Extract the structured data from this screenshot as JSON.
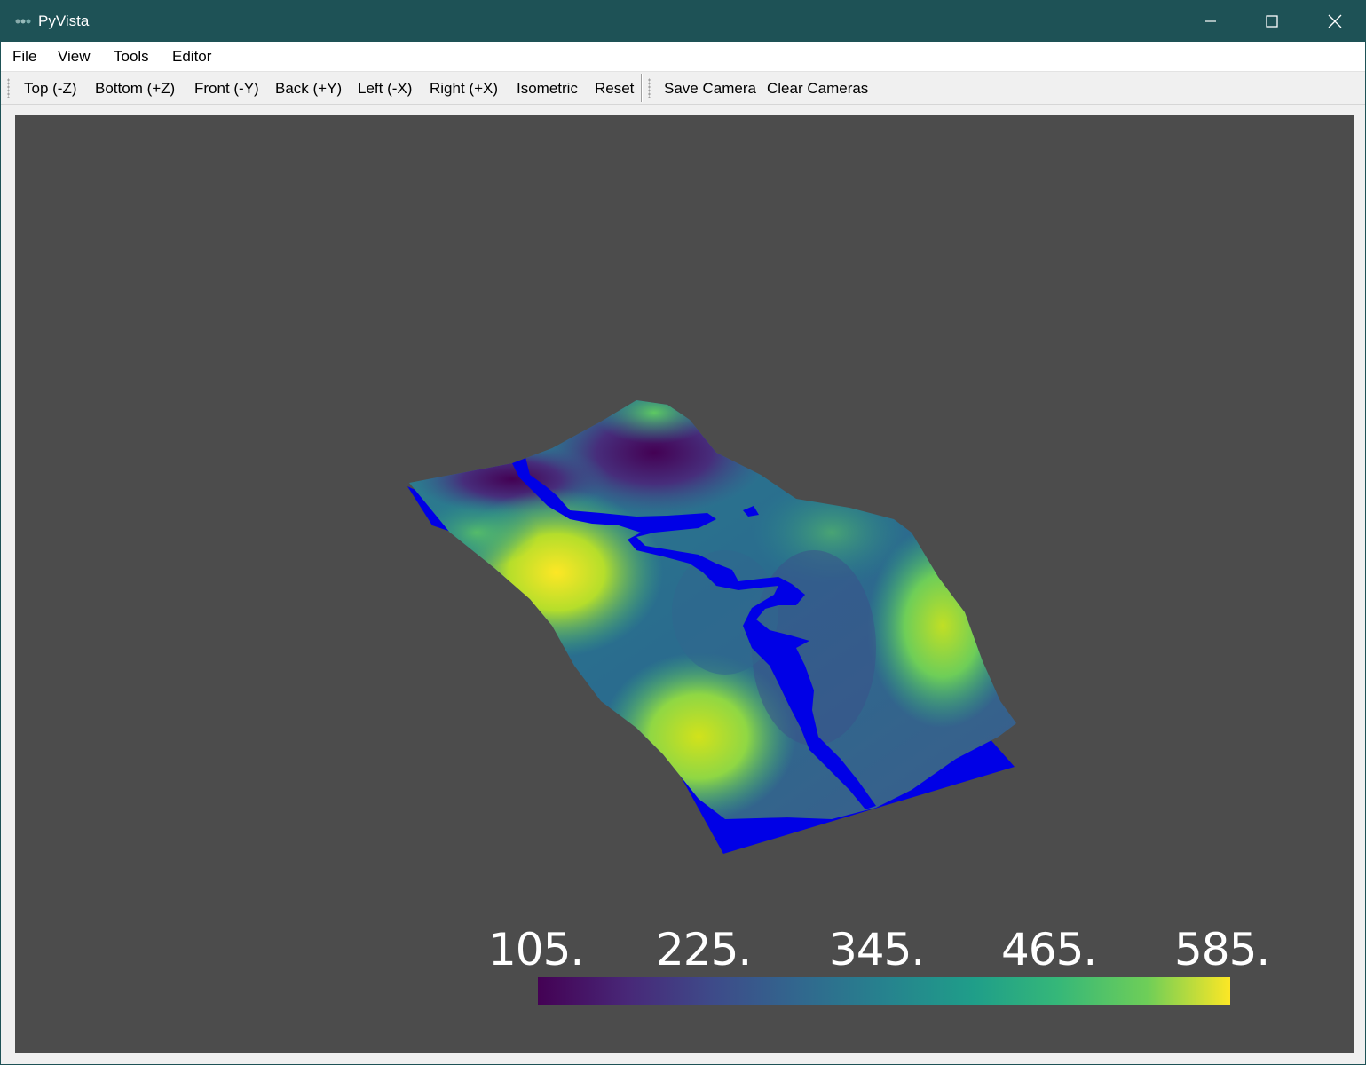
{
  "window": {
    "title": "PyVista"
  },
  "menu": [
    "File",
    "View",
    "Tools",
    "Editor"
  ],
  "toolbar": {
    "views": [
      "Top (-Z)",
      "Bottom (+Z)",
      "Front (-Y)",
      "Back (+Y)",
      "Left (-X)",
      "Right (+X)",
      "Isometric",
      "Reset"
    ],
    "camera": [
      "Save Camera",
      "Clear Cameras"
    ]
  },
  "scalar_bar": {
    "labels": [
      "105.",
      "225.",
      "345.",
      "465.",
      "585."
    ],
    "colormap": "viridis"
  },
  "colors": {
    "titlebar": "#1e5256",
    "viewport_bg": "#4c4c4c",
    "water": "#0000e6"
  },
  "icons": [
    "minimize-icon",
    "maximize-icon",
    "close-icon"
  ]
}
